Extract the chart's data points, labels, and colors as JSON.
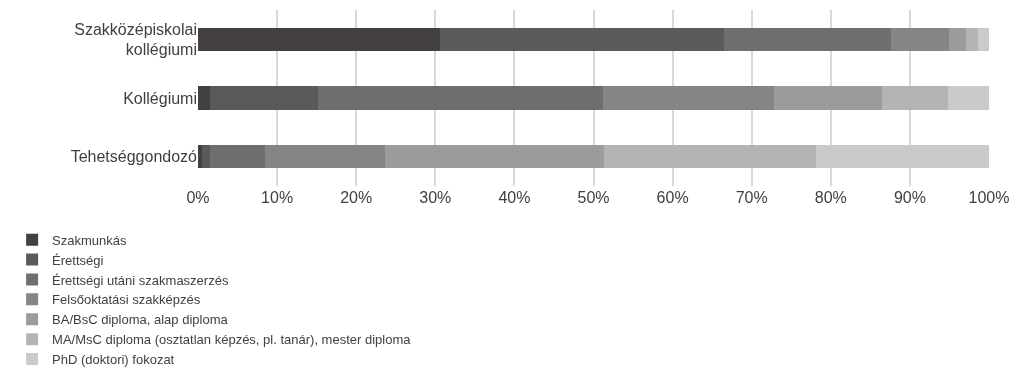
{
  "chart_data": {
    "type": "bar",
    "orientation": "horizontal",
    "stacked": true,
    "categories": [
      "Szakközépiskolai\nkollégiumi",
      "Kollégiumi",
      "Tehetséggondozó"
    ],
    "series": [
      {
        "name": "Szakmunkás",
        "color": "#443f40",
        "values": [
          30.6,
          1.5,
          0.5
        ]
      },
      {
        "name": "Érettségi",
        "color": "#5a5a5a",
        "values": [
          35.9,
          13.7,
          1.0
        ]
      },
      {
        "name": "Érettségi utáni szakmaszerzés",
        "color": "#6f6f6f",
        "values": [
          21.1,
          36.0,
          7.0
        ]
      },
      {
        "name": "Felsőoktatási szakképzés",
        "color": "#858585",
        "values": [
          7.3,
          21.6,
          15.1
        ]
      },
      {
        "name": "BA/BsC diploma, alap diploma",
        "color": "#9c9c9c",
        "values": [
          2.2,
          13.7,
          27.7
        ]
      },
      {
        "name": "MA/MsC diploma (osztatlan képzés, pl. tanár), mester diploma",
        "color": "#b4b4b4",
        "values": [
          1.5,
          8.3,
          26.8
        ]
      },
      {
        "name": "PhD (doktori) fokozat",
        "color": "#cacaca",
        "values": [
          1.4,
          5.2,
          21.9
        ]
      }
    ],
    "xlim": [
      0,
      100
    ],
    "xticks": [
      {
        "value": 0,
        "label": "0%"
      },
      {
        "value": 10,
        "label": "10%"
      },
      {
        "value": 20,
        "label": "20%"
      },
      {
        "value": 30,
        "label": "30%"
      },
      {
        "value": 40,
        "label": "40%"
      },
      {
        "value": 50,
        "label": "50%"
      },
      {
        "value": 60,
        "label": "60%"
      },
      {
        "value": 70,
        "label": "70%"
      },
      {
        "value": 80,
        "label": "80%"
      },
      {
        "value": 90,
        "label": "90%"
      },
      {
        "value": 100,
        "label": "100%"
      }
    ],
    "grid": "x",
    "legend": "bottom"
  }
}
